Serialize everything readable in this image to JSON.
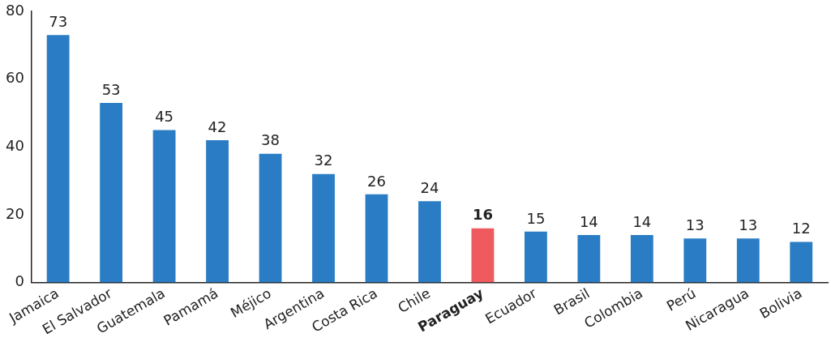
{
  "chart_data": {
    "type": "bar",
    "categories": [
      "Jamaica",
      "El Salvador",
      "Guatemala",
      "Pamamá",
      "Méjico",
      "Argentina",
      "Costa Rica",
      "Chile",
      "Paraguay",
      "Ecuador",
      "Brasil",
      "Colombia",
      "Perú",
      "Nicaragua",
      "Bolivia"
    ],
    "values": [
      73,
      53,
      45,
      42,
      38,
      32,
      26,
      24,
      16,
      15,
      14,
      14,
      13,
      13,
      12
    ],
    "colors": [
      "#2a7dc4",
      "#2a7dc4",
      "#2a7dc4",
      "#2a7dc4",
      "#2a7dc4",
      "#2a7dc4",
      "#2a7dc4",
      "#2a7dc4",
      "#ef5a5e",
      "#2a7dc4",
      "#2a7dc4",
      "#2a7dc4",
      "#2a7dc4",
      "#2a7dc4",
      "#2a7dc4"
    ],
    "ylim": [
      0,
      80
    ],
    "yticks": [
      0,
      20,
      40,
      60,
      80
    ],
    "grid": false,
    "legend": false,
    "data_labels": true
  }
}
